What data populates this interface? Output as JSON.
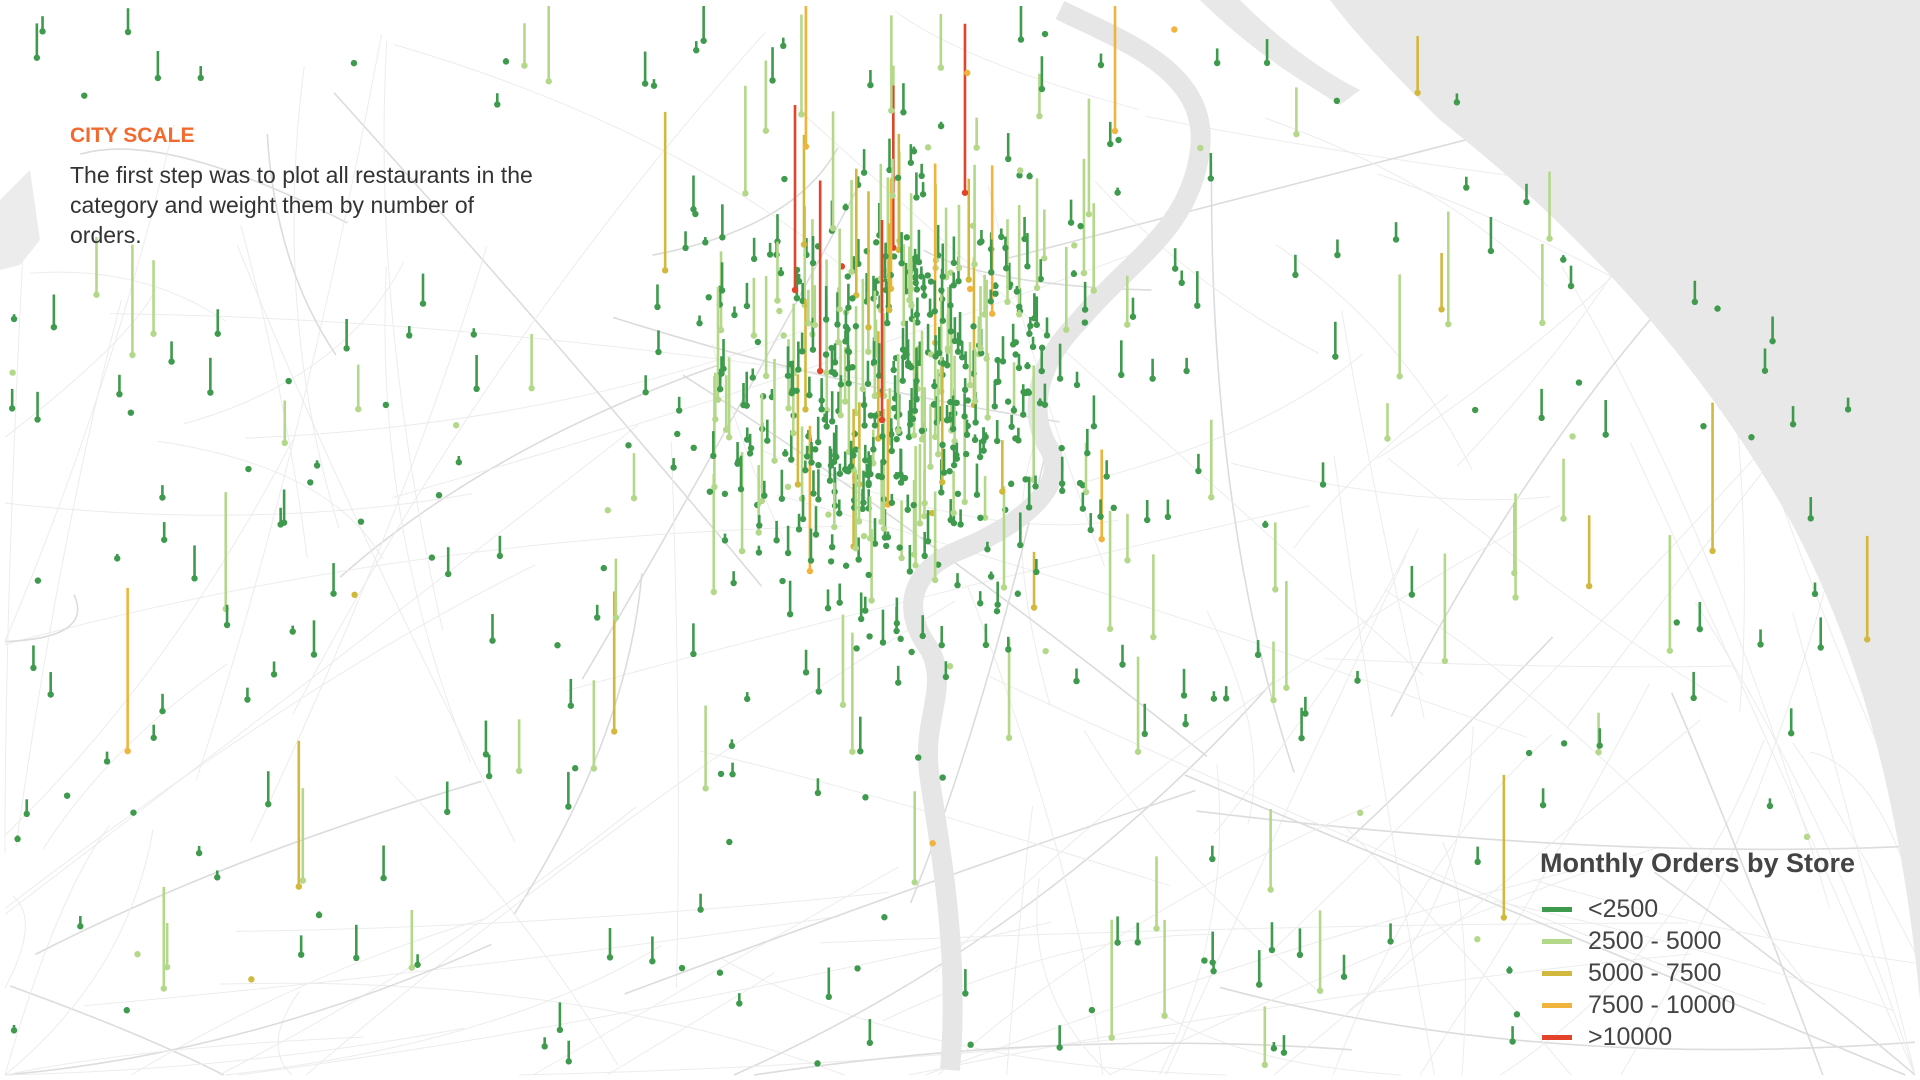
{
  "intro": {
    "heading": "CITY SCALE",
    "body": "The first step was to plot all restaurants in the category and weight them by number of orders.",
    "heading_color": "#f26a2e"
  },
  "legend": {
    "title": "Monthly Orders by Store",
    "items": [
      {
        "label": "<2500",
        "color": "#3e9a4c"
      },
      {
        "label": "2500 - 5000",
        "color": "#b3d88a"
      },
      {
        "label": "5000 - 7500",
        "color": "#d2b83c"
      },
      {
        "label": "7500 - 10000",
        "color": "#f0b43c"
      },
      {
        "label": ">10000",
        "color": "#e2432a"
      }
    ]
  },
  "map": {
    "water_color": "#e8e8e8",
    "road_color": "#e4e4e4"
  }
}
